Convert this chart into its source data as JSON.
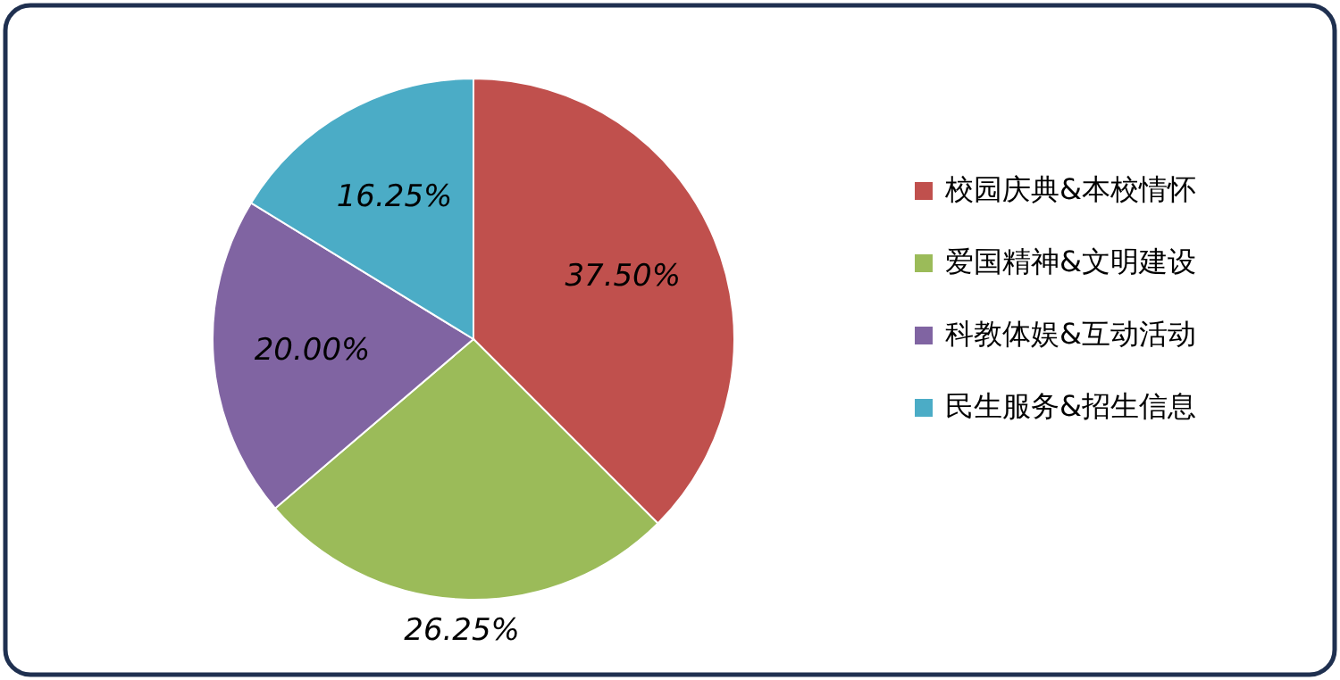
{
  "chart_data": {
    "type": "pie",
    "categories": [
      "校园庆典&本校情怀",
      "爱国精神&文明建设",
      "科教体娱&互动活动",
      "民生服务&招生信息"
    ],
    "values": [
      37.5,
      26.25,
      20,
      16.25
    ],
    "value_labels": [
      "37.50%",
      "26.25%",
      "20.00%",
      "16.25%"
    ],
    "colors": [
      "#c0504d",
      "#9bbb59",
      "#8064a2",
      "#4bacc6"
    ],
    "legend": "right"
  }
}
